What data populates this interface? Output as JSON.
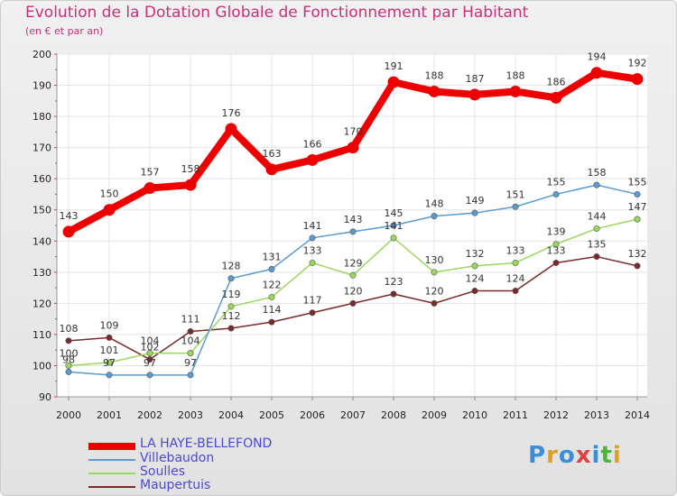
{
  "header": {
    "title": "Evolution de la Dotation Globale de Fonctionnement par Habitant",
    "subtitle": "(en € et par an)"
  },
  "logo": {
    "text": "Proxiti",
    "colors": [
      "#3a8fd6",
      "#e0a020",
      "#3a8fd6",
      "#e04040",
      "#3a8fd6",
      "#50b040",
      "#e0a020"
    ]
  },
  "chart_data": {
    "type": "line",
    "title": "Evolution de la Dotation Globale de Fonctionnement par Habitant",
    "subtitle": "(en € et par an)",
    "xlabel": "",
    "ylabel": "",
    "ylim": [
      90,
      200
    ],
    "yticks": [
      90,
      100,
      110,
      120,
      130,
      140,
      150,
      160,
      170,
      180,
      190,
      200
    ],
    "categories": [
      "2000",
      "2001",
      "2002",
      "2003",
      "2004",
      "2005",
      "2006",
      "2007",
      "2008",
      "2009",
      "2010",
      "2011",
      "2012",
      "2013",
      "2014"
    ],
    "grid": true,
    "legend": "bottom-left",
    "series": [
      {
        "name": "LA HAYE-BELLEFOND",
        "color": "#ee0000",
        "values": [
          143,
          150,
          157,
          158,
          176,
          163,
          166,
          170,
          191,
          188,
          187,
          188,
          186,
          194,
          192
        ]
      },
      {
        "name": "Villebaudon",
        "color": "#5b9bd0",
        "values": [
          98,
          97,
          97,
          97,
          128,
          131,
          141,
          143,
          145,
          148,
          149,
          151,
          155,
          158,
          155
        ]
      },
      {
        "name": "Soulles",
        "color": "#9ad85c",
        "values": [
          100,
          101,
          104,
          104,
          119,
          122,
          133,
          129,
          141,
          130,
          132,
          133,
          139,
          144,
          147
        ]
      },
      {
        "name": "Maupertuis",
        "color": "#7a2a2a",
        "values": [
          108,
          109,
          102,
          111,
          112,
          114,
          117,
          120,
          123,
          120,
          124,
          124,
          133,
          135,
          132
        ]
      }
    ],
    "value_labels": {
      "LA HAYE-BELLEFOND": [
        "143",
        "150",
        "157",
        "158",
        "176",
        "163",
        "166",
        "170",
        "191",
        "188",
        "187",
        "188",
        "186",
        "194",
        "192"
      ],
      "Villebaudon": [
        "98",
        "97",
        "97",
        "97",
        "128",
        "131",
        "141",
        "143",
        "145",
        "148",
        "149",
        "151",
        "155",
        "158",
        "155"
      ],
      "Soulles": [
        "100",
        "101",
        "104",
        "104",
        "119",
        "122",
        "133",
        "129",
        "141",
        "130",
        "132",
        "133",
        "139",
        "144",
        "147"
      ],
      "Maupertuis": [
        "108",
        "109",
        "102",
        "111",
        "112",
        "114",
        "117",
        "120",
        "123",
        "120",
        "124",
        "124",
        "133",
        "135",
        "132"
      ]
    }
  }
}
